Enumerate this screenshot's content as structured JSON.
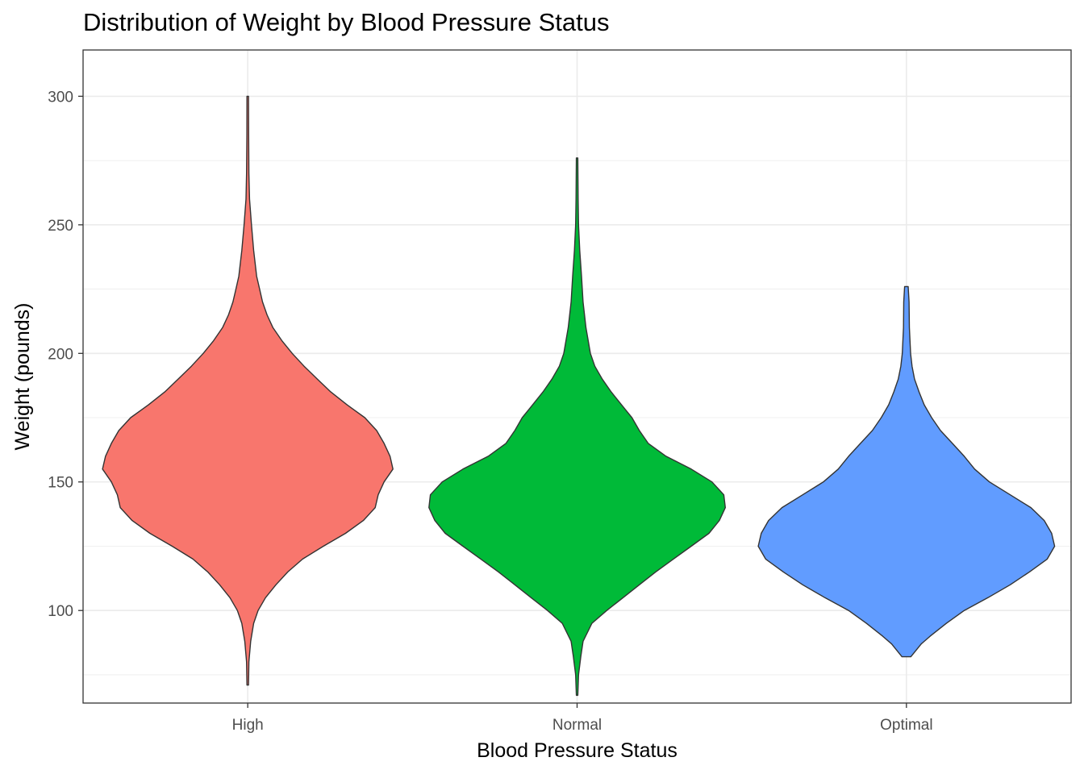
{
  "chart_data": {
    "type": "violin",
    "title": "Distribution of Weight by Blood Pressure Status",
    "xlabel": "Blood Pressure Status",
    "ylabel": "Weight (pounds)",
    "ylim": [
      64,
      318
    ],
    "yticks": [
      100,
      150,
      200,
      250,
      300
    ],
    "grid": true,
    "legend": "none",
    "categories": [
      "High",
      "Normal",
      "Optimal"
    ],
    "series": [
      {
        "category": "High",
        "color": "#F8766D",
        "range": [
          71,
          300
        ],
        "density": [
          [
            71,
            0.005
          ],
          [
            80,
            0.008
          ],
          [
            88,
            0.02
          ],
          [
            95,
            0.04
          ],
          [
            100,
            0.07
          ],
          [
            105,
            0.12
          ],
          [
            110,
            0.19
          ],
          [
            115,
            0.27
          ],
          [
            120,
            0.37
          ],
          [
            125,
            0.51
          ],
          [
            130,
            0.66
          ],
          [
            135,
            0.78
          ],
          [
            140,
            0.86
          ],
          [
            145,
            0.88
          ],
          [
            150,
            0.92
          ],
          [
            155,
            0.98
          ],
          [
            160,
            0.96
          ],
          [
            165,
            0.92
          ],
          [
            170,
            0.87
          ],
          [
            175,
            0.79
          ],
          [
            180,
            0.67
          ],
          [
            185,
            0.56
          ],
          [
            190,
            0.47
          ],
          [
            195,
            0.38
          ],
          [
            200,
            0.3
          ],
          [
            205,
            0.23
          ],
          [
            210,
            0.17
          ],
          [
            215,
            0.13
          ],
          [
            220,
            0.1
          ],
          [
            225,
            0.08
          ],
          [
            230,
            0.06
          ],
          [
            240,
            0.04
          ],
          [
            250,
            0.025
          ],
          [
            260,
            0.012
          ],
          [
            270,
            0.008
          ],
          [
            285,
            0.006
          ],
          [
            300,
            0.005
          ]
        ]
      },
      {
        "category": "Normal",
        "color": "#00BA38",
        "range": [
          67,
          276
        ],
        "density": [
          [
            67,
            0.005
          ],
          [
            75,
            0.01
          ],
          [
            82,
            0.025
          ],
          [
            88,
            0.04
          ],
          [
            95,
            0.1
          ],
          [
            100,
            0.2
          ],
          [
            105,
            0.31
          ],
          [
            110,
            0.42
          ],
          [
            115,
            0.53
          ],
          [
            120,
            0.65
          ],
          [
            125,
            0.77
          ],
          [
            130,
            0.89
          ],
          [
            135,
            0.96
          ],
          [
            140,
            1.0
          ],
          [
            145,
            0.99
          ],
          [
            150,
            0.91
          ],
          [
            155,
            0.77
          ],
          [
            160,
            0.6
          ],
          [
            165,
            0.48
          ],
          [
            170,
            0.42
          ],
          [
            175,
            0.37
          ],
          [
            180,
            0.3
          ],
          [
            185,
            0.23
          ],
          [
            190,
            0.17
          ],
          [
            195,
            0.12
          ],
          [
            200,
            0.09
          ],
          [
            210,
            0.06
          ],
          [
            220,
            0.04
          ],
          [
            230,
            0.03
          ],
          [
            240,
            0.018
          ],
          [
            250,
            0.01
          ],
          [
            260,
            0.007
          ],
          [
            276,
            0.005
          ]
        ]
      },
      {
        "category": "Optimal",
        "color": "#619CFF",
        "range": [
          82,
          226
        ],
        "density": [
          [
            82,
            0.03
          ],
          [
            87,
            0.1
          ],
          [
            90,
            0.16
          ],
          [
            95,
            0.27
          ],
          [
            100,
            0.39
          ],
          [
            105,
            0.55
          ],
          [
            110,
            0.7
          ],
          [
            115,
            0.83
          ],
          [
            120,
            0.95
          ],
          [
            125,
            1.0
          ],
          [
            130,
            0.98
          ],
          [
            135,
            0.93
          ],
          [
            140,
            0.84
          ],
          [
            145,
            0.7
          ],
          [
            150,
            0.56
          ],
          [
            155,
            0.46
          ],
          [
            160,
            0.39
          ],
          [
            165,
            0.31
          ],
          [
            170,
            0.23
          ],
          [
            175,
            0.17
          ],
          [
            180,
            0.12
          ],
          [
            185,
            0.085
          ],
          [
            190,
            0.055
          ],
          [
            195,
            0.038
          ],
          [
            200,
            0.028
          ],
          [
            210,
            0.02
          ],
          [
            220,
            0.018
          ],
          [
            226,
            0.012
          ]
        ]
      }
    ]
  }
}
